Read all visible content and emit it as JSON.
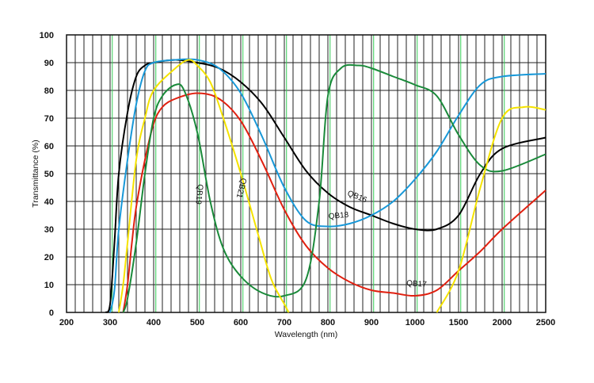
{
  "chart_data": {
    "type": "line",
    "title": "",
    "xlabel": "Wavelength (nm)",
    "ylabel": "Transmittance (%)",
    "ylim": [
      0,
      100
    ],
    "x_tick_labels": [
      "200",
      "300",
      "400",
      "500",
      "600",
      "700",
      "800",
      "900",
      "1000",
      "1500",
      "2000",
      "2500"
    ],
    "y_tick_labels": [
      "0",
      "10",
      "20",
      "30",
      "40",
      "50",
      "60",
      "70",
      "80",
      "90",
      "100"
    ],
    "x_scale_note": "piecewise axis: 100 nm steps from 200 to 1000 nm, then 500 nm steps to 2500 nm",
    "grid": true,
    "series": [
      {
        "name": "QB16",
        "color": "#000000",
        "label": "QB16",
        "points": [
          [
            290,
            0
          ],
          [
            300,
            3
          ],
          [
            310,
            25
          ],
          [
            320,
            50
          ],
          [
            340,
            72
          ],
          [
            360,
            85
          ],
          [
            380,
            89
          ],
          [
            400,
            90
          ],
          [
            450,
            91
          ],
          [
            500,
            90
          ],
          [
            550,
            88
          ],
          [
            600,
            83
          ],
          [
            650,
            75
          ],
          [
            700,
            63
          ],
          [
            750,
            51
          ],
          [
            800,
            43
          ],
          [
            850,
            38
          ],
          [
            900,
            35
          ],
          [
            950,
            32
          ],
          [
            1000,
            30
          ],
          [
            1250,
            30
          ],
          [
            1500,
            35
          ],
          [
            1750,
            50
          ],
          [
            2000,
            59
          ],
          [
            2500,
            63
          ]
        ]
      },
      {
        "name": "QB17",
        "color": "#e02010",
        "label": "QB17",
        "points": [
          [
            330,
            0
          ],
          [
            340,
            10
          ],
          [
            350,
            25
          ],
          [
            360,
            38
          ],
          [
            380,
            55
          ],
          [
            400,
            68
          ],
          [
            420,
            74
          ],
          [
            450,
            77
          ],
          [
            500,
            79
          ],
          [
            550,
            77
          ],
          [
            600,
            69
          ],
          [
            650,
            54
          ],
          [
            700,
            37
          ],
          [
            750,
            24
          ],
          [
            800,
            16
          ],
          [
            850,
            11
          ],
          [
            900,
            8
          ],
          [
            950,
            7
          ],
          [
            1000,
            6
          ],
          [
            1250,
            8
          ],
          [
            1500,
            15
          ],
          [
            1750,
            22
          ],
          [
            2000,
            30
          ],
          [
            2500,
            44
          ]
        ]
      },
      {
        "name": "QB18",
        "color": "#1898d8",
        "label": "QB18",
        "points": [
          [
            300,
            0
          ],
          [
            310,
            8
          ],
          [
            320,
            30
          ],
          [
            340,
            55
          ],
          [
            360,
            75
          ],
          [
            380,
            87
          ],
          [
            400,
            90
          ],
          [
            450,
            91
          ],
          [
            500,
            91
          ],
          [
            550,
            88
          ],
          [
            600,
            79
          ],
          [
            650,
            63
          ],
          [
            700,
            45
          ],
          [
            750,
            33
          ],
          [
            800,
            31
          ],
          [
            850,
            32
          ],
          [
            900,
            35
          ],
          [
            950,
            40
          ],
          [
            1000,
            48
          ],
          [
            1250,
            58
          ],
          [
            1500,
            71
          ],
          [
            1750,
            82
          ],
          [
            2000,
            85
          ],
          [
            2500,
            86
          ]
        ]
      },
      {
        "name": "QB19",
        "color": "#1a8a3a",
        "label": "QB19",
        "points": [
          [
            330,
            0
          ],
          [
            340,
            5
          ],
          [
            360,
            25
          ],
          [
            380,
            50
          ],
          [
            400,
            70
          ],
          [
            420,
            78
          ],
          [
            450,
            82
          ],
          [
            470,
            80
          ],
          [
            500,
            65
          ],
          [
            530,
            40
          ],
          [
            560,
            23
          ],
          [
            600,
            13
          ],
          [
            650,
            7
          ],
          [
            700,
            6
          ],
          [
            750,
            12
          ],
          [
            780,
            40
          ],
          [
            800,
            78
          ],
          [
            830,
            88
          ],
          [
            870,
            89
          ],
          [
            900,
            88
          ],
          [
            950,
            85
          ],
          [
            1000,
            82
          ],
          [
            1250,
            78
          ],
          [
            1500,
            64
          ],
          [
            1750,
            53
          ],
          [
            2000,
            51
          ],
          [
            2500,
            57
          ]
        ]
      },
      {
        "name": "QB21",
        "color": "#f5e300",
        "label": "QB21",
        "points": [
          [
            320,
            0
          ],
          [
            330,
            10
          ],
          [
            340,
            25
          ],
          [
            360,
            55
          ],
          [
            380,
            70
          ],
          [
            400,
            80
          ],
          [
            450,
            88
          ],
          [
            480,
            91
          ],
          [
            500,
            89
          ],
          [
            530,
            83
          ],
          [
            560,
            70
          ],
          [
            600,
            50
          ],
          [
            640,
            28
          ],
          [
            670,
            12
          ],
          [
            700,
            3
          ],
          [
            710,
            0
          ]
        ],
        "points_tail": [
          [
            1250,
            0
          ],
          [
            1500,
            15
          ],
          [
            1750,
            45
          ],
          [
            2000,
            70
          ],
          [
            2250,
            74
          ],
          [
            2500,
            73
          ]
        ]
      }
    ]
  }
}
